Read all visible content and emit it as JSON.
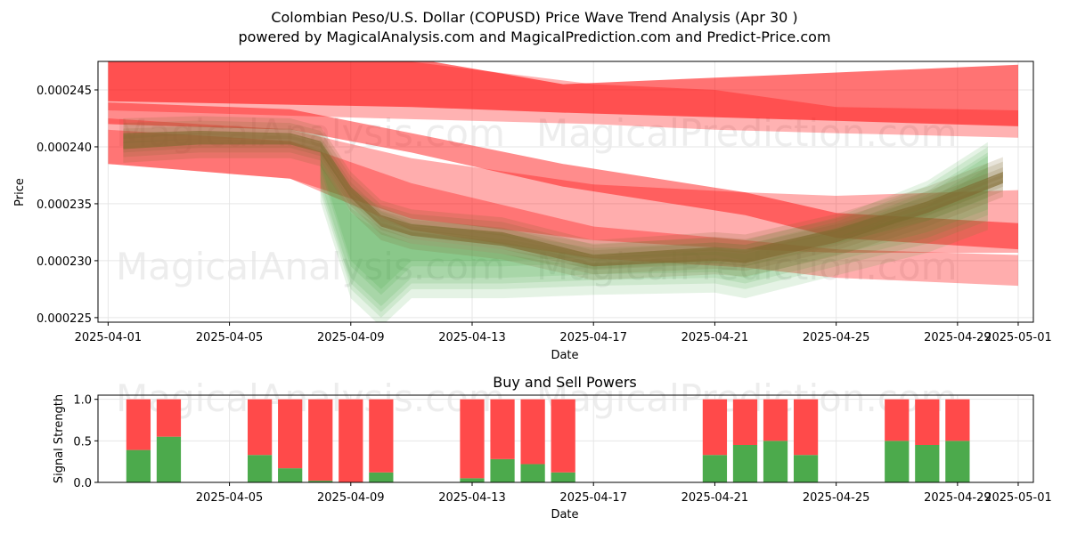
{
  "title_line1": "Colombian Peso/U.S. Dollar (COPUSD) Price Wave Trend Analysis (Apr 30 )",
  "title_line2": "powered by MagicalAnalysis.com and MagicalPrediction.com and Predict-Price.com",
  "watermarks": [
    "MagicalAnalysis.com",
    "MagicalPrediction.com"
  ],
  "colors": {
    "sell_band": "#ff0000",
    "buy_band": "#2ca02c",
    "price_core": "#7f6a30",
    "buy_bar": "#4caa4c",
    "sell_bar": "#ff4a4a"
  },
  "chart_data": [
    {
      "type": "area",
      "title": "",
      "xlabel": "Date",
      "ylabel": "Price",
      "xlim": [
        "2025-03-31T16:00",
        "2025-05-01T12:00"
      ],
      "ylim": [
        0.0002246,
        0.0002475
      ],
      "x_ticks": [
        "2025-04-01",
        "2025-04-05",
        "2025-04-09",
        "2025-04-13",
        "2025-04-17",
        "2025-04-21",
        "2025-04-25",
        "2025-04-29",
        "2025-05-01"
      ],
      "y_ticks": [
        0.000225,
        0.00023,
        0.000235,
        0.00024,
        0.000245
      ],
      "y_tick_labels": [
        "0.000225",
        "0.000230",
        "0.000235",
        "0.000240",
        "0.000245"
      ],
      "grid": true,
      "sell_bands": [
        {
          "x": [
            "2025-04-01",
            "2025-04-11",
            "2025-04-16",
            "2025-05-01"
          ],
          "upper": [
            0.0002478,
            0.0002478,
            0.0002455,
            0.0002472
          ],
          "lower": [
            0.000244,
            0.0002435,
            0.000243,
            0.0002418
          ],
          "alpha": 0.55
        },
        {
          "x": [
            "2025-04-01",
            "2025-04-10",
            "2025-04-17",
            "2025-04-21",
            "2025-04-25",
            "2025-05-01"
          ],
          "upper": [
            0.0002478,
            0.0002478,
            0.0002455,
            0.000245,
            0.0002435,
            0.0002432
          ],
          "lower": [
            0.0002432,
            0.0002425,
            0.000242,
            0.0002415,
            0.0002412,
            0.0002408
          ],
          "alpha": 0.3
        },
        {
          "x": [
            "2025-04-01",
            "2025-04-07",
            "2025-04-11",
            "2025-04-17",
            "2025-04-22",
            "2025-04-25",
            "2025-05-01"
          ],
          "upper": [
            0.0002425,
            0.0002415,
            0.000239,
            0.0002367,
            0.000236,
            0.0002357,
            0.0002362
          ],
          "lower": [
            0.0002385,
            0.0002372,
            0.0002337,
            0.0002318,
            0.000231,
            0.0002307,
            0.0002307
          ],
          "alpha": 0.32
        },
        {
          "x": [
            "2025-04-01",
            "2025-04-07",
            "2025-04-11",
            "2025-04-17",
            "2025-04-22",
            "2025-04-25",
            "2025-05-01"
          ],
          "upper": [
            0.0002415,
            0.0002405,
            0.0002368,
            0.000233,
            0.0002318,
            0.000231,
            0.0002305
          ],
          "lower": [
            0.0002385,
            0.0002372,
            0.0002327,
            0.0002302,
            0.0002294,
            0.0002285,
            0.0002278
          ],
          "alpha": 0.32
        },
        {
          "x": [
            "2025-04-01",
            "2025-04-07",
            "2025-04-11",
            "2025-04-16",
            "2025-04-22",
            "2025-04-25",
            "2025-05-01"
          ],
          "upper": [
            0.0002439,
            0.0002433,
            0.0002412,
            0.0002385,
            0.000236,
            0.0002342,
            0.0002333
          ],
          "lower": [
            0.000242,
            0.0002415,
            0.0002395,
            0.0002365,
            0.000234,
            0.000232,
            0.000231
          ],
          "alpha": 0.45
        }
      ],
      "price_core": {
        "x": [
          "2025-04-01T12:00",
          "2025-04-04",
          "2025-04-07",
          "2025-04-08",
          "2025-04-09",
          "2025-04-10",
          "2025-04-11",
          "2025-04-14",
          "2025-04-17",
          "2025-04-21",
          "2025-04-22",
          "2025-04-25",
          "2025-04-28",
          "2025-04-30T12:00"
        ],
        "upper": [
          0.0002412,
          0.0002414,
          0.0002412,
          0.0002405,
          0.0002365,
          0.000234,
          0.0002332,
          0.0002325,
          0.0002305,
          0.0002312,
          0.000231,
          0.0002328,
          0.0002352,
          0.0002378
        ],
        "lower": [
          0.0002398,
          0.0002402,
          0.0002402,
          0.0002395,
          0.0002355,
          0.000233,
          0.0002322,
          0.0002313,
          0.0002295,
          0.00023,
          0.0002298,
          0.0002316,
          0.0002342,
          0.0002368
        ]
      },
      "buy_bands": {
        "x": [
          "2025-04-08",
          "2025-04-09",
          "2025-04-10",
          "2025-04-11",
          "2025-04-14",
          "2025-04-17",
          "2025-04-21",
          "2025-04-22",
          "2025-04-25",
          "2025-04-28",
          "2025-04-30"
        ],
        "upper": [
          0.0002395,
          0.0002352,
          0.0002335,
          0.0002325,
          0.0002316,
          0.0002303,
          0.0002308,
          0.0002306,
          0.0002326,
          0.0002358,
          0.0002392
        ],
        "lower": [
          0.000237,
          0.0002285,
          0.000226,
          0.0002285,
          0.0002285,
          0.0002288,
          0.000229,
          0.0002285,
          0.0002305,
          0.0002325,
          0.0002345
        ]
      }
    },
    {
      "type": "bar",
      "title": "Buy and Sell Powers",
      "xlabel": "Date",
      "ylabel": "Signal Strength",
      "ylim": [
        0,
        1.05
      ],
      "y_ticks": [
        0,
        0.5,
        1
      ],
      "y_tick_labels": [
        "0.0",
        "0.5",
        "1.0"
      ],
      "x_ticks": [
        "2025-04-05",
        "2025-04-09",
        "2025-04-13",
        "2025-04-17",
        "2025-04-21",
        "2025-04-25",
        "2025-04-29",
        "2025-05-01"
      ],
      "grid": true,
      "categories": [
        "2025-04-02",
        "2025-04-03",
        "2025-04-06",
        "2025-04-07",
        "2025-04-08",
        "2025-04-09",
        "2025-04-10",
        "2025-04-13",
        "2025-04-14",
        "2025-04-15",
        "2025-04-16",
        "2025-04-21",
        "2025-04-22",
        "2025-04-23",
        "2025-04-24",
        "2025-04-27",
        "2025-04-28",
        "2025-04-29"
      ],
      "series": [
        {
          "name": "",
          "key": "buy",
          "values": [
            0.39,
            0.55,
            0.33,
            0.17,
            0.02,
            0.0,
            0.12,
            0.05,
            0.28,
            0.22,
            0.12,
            0.33,
            0.45,
            0.5,
            0.33,
            0.5,
            0.45,
            0.5
          ]
        },
        {
          "name": "",
          "key": "sell",
          "values": [
            0.61,
            0.45,
            0.67,
            0.83,
            0.98,
            1.0,
            0.88,
            0.95,
            0.72,
            0.78,
            0.88,
            0.67,
            0.55,
            0.5,
            0.67,
            0.5,
            0.55,
            0.5
          ]
        }
      ]
    }
  ]
}
